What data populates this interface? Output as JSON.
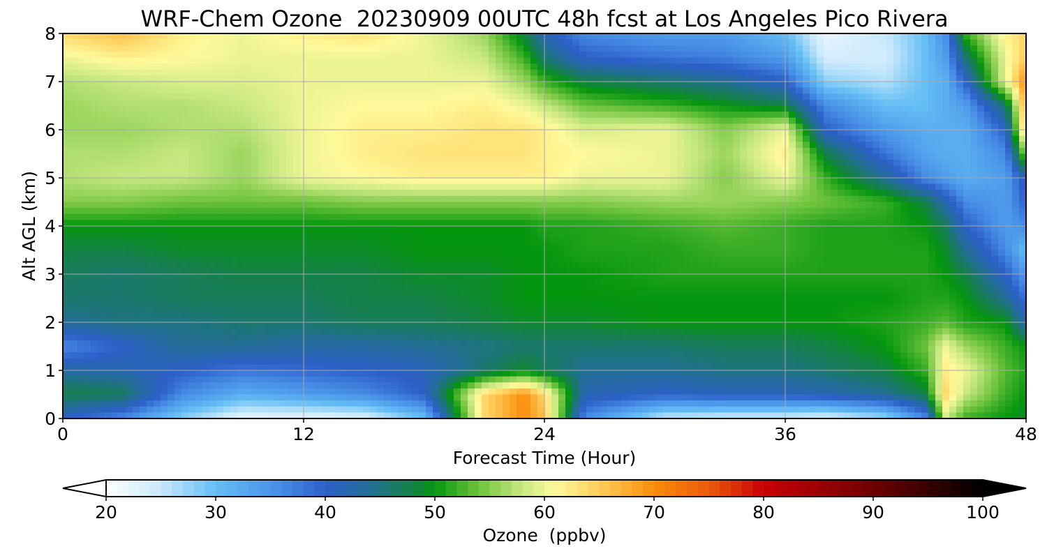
{
  "chart_data": {
    "type": "heatmap",
    "title": "WRF-Chem Ozone  20230909 00UTC 48h fcst at Los Angeles Pico Rivera",
    "xlabel": "Forecast Time (Hour)",
    "ylabel": "Alt AGL (km)",
    "xlim": [
      0,
      48
    ],
    "ylim": [
      0,
      8
    ],
    "x_ticks": [
      "0",
      "12",
      "24",
      "36",
      "48"
    ],
    "y_ticks": [
      "0",
      "1",
      "2",
      "3",
      "4",
      "5",
      "6",
      "7",
      "8"
    ],
    "grid": true,
    "x": [
      0,
      3,
      6,
      9,
      12,
      15,
      18,
      21,
      23,
      24,
      26,
      30,
      33,
      36,
      38,
      41,
      43,
      44,
      45,
      47,
      48
    ],
    "y": [
      0,
      0.5,
      1,
      1.5,
      2,
      2.5,
      3,
      3.5,
      4,
      4.5,
      5,
      5.5,
      6,
      6.5,
      7,
      7.5,
      8
    ],
    "z": [
      [
        40,
        36,
        28,
        22,
        22,
        23,
        30,
        64,
        70,
        66,
        36,
        25,
        24,
        24,
        23,
        27,
        36,
        58,
        52,
        50,
        49
      ],
      [
        48,
        47,
        36,
        32,
        34,
        36,
        40,
        64,
        70,
        64,
        42,
        40,
        41,
        41,
        42,
        44,
        48,
        64,
        58,
        52,
        50
      ],
      [
        43,
        42,
        40,
        38,
        39,
        40,
        41,
        46,
        49,
        47,
        44,
        44,
        45,
        45,
        46,
        48,
        52,
        62,
        60,
        53,
        51
      ],
      [
        36,
        40,
        44,
        44,
        43,
        43,
        44,
        45,
        46,
        46,
        46,
        46,
        47,
        47,
        48,
        50,
        54,
        60,
        56,
        52,
        50
      ],
      [
        44,
        45,
        45,
        46,
        46,
        47,
        47,
        48,
        49,
        49,
        49,
        50,
        50,
        50,
        50,
        51,
        52,
        53,
        51,
        50,
        42
      ],
      [
        46,
        46,
        47,
        47,
        47,
        48,
        48,
        49,
        50,
        50,
        50,
        50,
        50,
        50,
        50,
        50,
        51,
        51,
        50,
        44,
        38
      ],
      [
        47,
        46,
        47,
        48,
        48,
        48,
        49,
        49,
        50,
        50,
        50,
        51,
        51,
        51,
        51,
        51,
        51,
        50,
        48,
        40,
        34
      ],
      [
        48,
        48,
        49,
        49,
        49,
        49,
        50,
        50,
        50,
        50,
        51,
        51,
        52,
        52,
        51,
        51,
        51,
        49,
        44,
        36,
        30
      ],
      [
        50,
        50,
        50,
        50,
        50,
        50,
        50,
        50,
        50,
        51,
        51,
        52,
        53,
        52,
        51,
        51,
        50,
        47,
        40,
        34,
        36
      ],
      [
        55,
        55,
        54,
        54,
        54,
        55,
        55,
        55,
        55,
        55,
        55,
        56,
        56,
        55,
        54,
        52,
        48,
        42,
        36,
        34,
        40
      ],
      [
        57,
        58,
        58,
        56,
        60,
        61,
        62,
        62,
        62,
        62,
        60,
        60,
        55,
        60,
        52,
        44,
        36,
        34,
        32,
        34,
        42
      ],
      [
        57,
        57,
        58,
        56,
        60,
        62,
        63,
        63,
        63,
        62,
        61,
        60,
        56,
        62,
        48,
        38,
        33,
        32,
        32,
        36,
        56
      ],
      [
        56,
        56,
        57,
        57,
        60,
        62,
        62,
        63,
        63,
        62,
        59,
        60,
        55,
        60,
        40,
        34,
        32,
        32,
        32,
        40,
        66
      ],
      [
        56,
        57,
        57,
        58,
        60,
        61,
        61,
        62,
        60,
        58,
        54,
        52,
        50,
        48,
        36,
        30,
        30,
        32,
        34,
        46,
        68
      ],
      [
        57,
        58,
        59,
        59,
        60,
        60,
        60,
        60,
        56,
        52,
        48,
        46,
        44,
        40,
        28,
        26,
        30,
        32,
        40,
        60,
        70
      ],
      [
        60,
        62,
        61,
        60,
        60,
        60,
        60,
        58,
        52,
        46,
        40,
        38,
        37,
        34,
        24,
        24,
        30,
        34,
        46,
        60,
        65
      ],
      [
        64,
        66,
        62,
        60,
        62,
        63,
        60,
        56,
        48,
        42,
        36,
        34,
        34,
        30,
        22,
        25,
        30,
        36,
        52,
        62,
        64
      ]
    ],
    "colorbar": {
      "label": "Ozone  (ppbv)",
      "min": 20,
      "max": 100,
      "ticks": [
        "20",
        "30",
        "40",
        "50",
        "60",
        "70",
        "80",
        "90",
        "100"
      ],
      "extend": "both"
    }
  }
}
